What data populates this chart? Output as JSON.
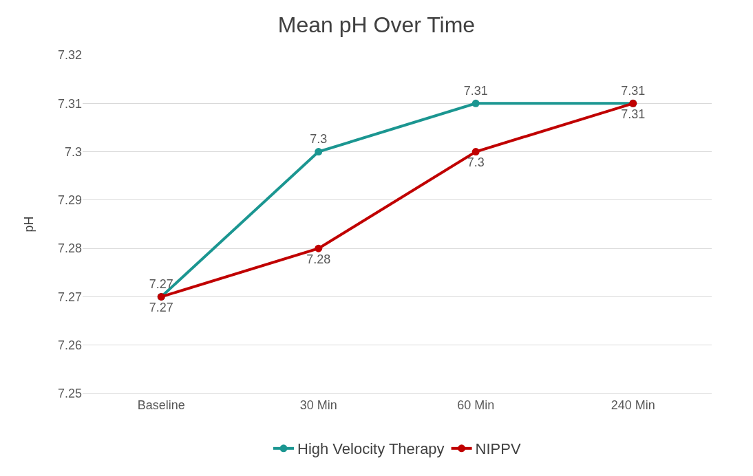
{
  "chart_data": {
    "type": "line",
    "title": "Mean pH Over Time",
    "ylabel": "pH",
    "categories": [
      "Baseline",
      "30 Min",
      "60 Min",
      "240 Min"
    ],
    "series": [
      {
        "name": "High Velocity Therapy",
        "color": "#1b9691",
        "values": [
          7.27,
          7.3,
          7.31,
          7.31
        ]
      },
      {
        "name": "NIPPV",
        "color": "#c00000",
        "values": [
          7.27,
          7.28,
          7.3,
          7.31
        ]
      }
    ],
    "ylim": [
      7.25,
      7.32
    ],
    "yticks": [
      7.25,
      7.26,
      7.27,
      7.28,
      7.29,
      7.3,
      7.31,
      7.32
    ],
    "grid": "y",
    "legend": "bottom",
    "marker": "circle",
    "line_style": "solid",
    "data_labels": true
  }
}
